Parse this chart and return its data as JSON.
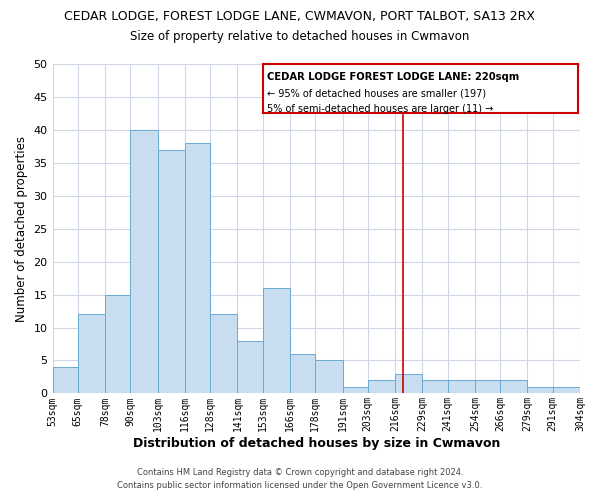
{
  "title": "CEDAR LODGE, FOREST LODGE LANE, CWMAVON, PORT TALBOT, SA13 2RX",
  "subtitle": "Size of property relative to detached houses in Cwmavon",
  "xlabel": "Distribution of detached houses by size in Cwmavon",
  "ylabel": "Number of detached properties",
  "bar_color": "#c9ddf0",
  "bar_edge_color": "#6aaad4",
  "grid_color": "#d0d8e8",
  "reference_line_x": 220,
  "reference_line_color": "#cc0000",
  "bin_edges": [
    53,
    65,
    78,
    90,
    103,
    116,
    128,
    141,
    153,
    166,
    178,
    191,
    203,
    216,
    229,
    241,
    254,
    266,
    279,
    291,
    304
  ],
  "bin_labels": [
    "53sqm",
    "65sqm",
    "78sqm",
    "90sqm",
    "103sqm",
    "116sqm",
    "128sqm",
    "141sqm",
    "153sqm",
    "166sqm",
    "178sqm",
    "191sqm",
    "203sqm",
    "216sqm",
    "229sqm",
    "241sqm",
    "254sqm",
    "266sqm",
    "279sqm",
    "291sqm",
    "304sqm"
  ],
  "counts": [
    4,
    12,
    15,
    40,
    37,
    38,
    12,
    8,
    16,
    6,
    5,
    1,
    2,
    3,
    2,
    2,
    2,
    2,
    1,
    1
  ],
  "ylim": [
    0,
    50
  ],
  "yticks": [
    0,
    5,
    10,
    15,
    20,
    25,
    30,
    35,
    40,
    45,
    50
  ],
  "annotation_title": "CEDAR LODGE FOREST LODGE LANE: 220sqm",
  "annotation_line1": "← 95% of detached houses are smaller (197)",
  "annotation_line2": "5% of semi-detached houses are larger (11) →",
  "annotation_box_color": "#cc0000",
  "footer_line1": "Contains HM Land Registry data © Crown copyright and database right 2024.",
  "footer_line2": "Contains public sector information licensed under the Open Government Licence v3.0."
}
